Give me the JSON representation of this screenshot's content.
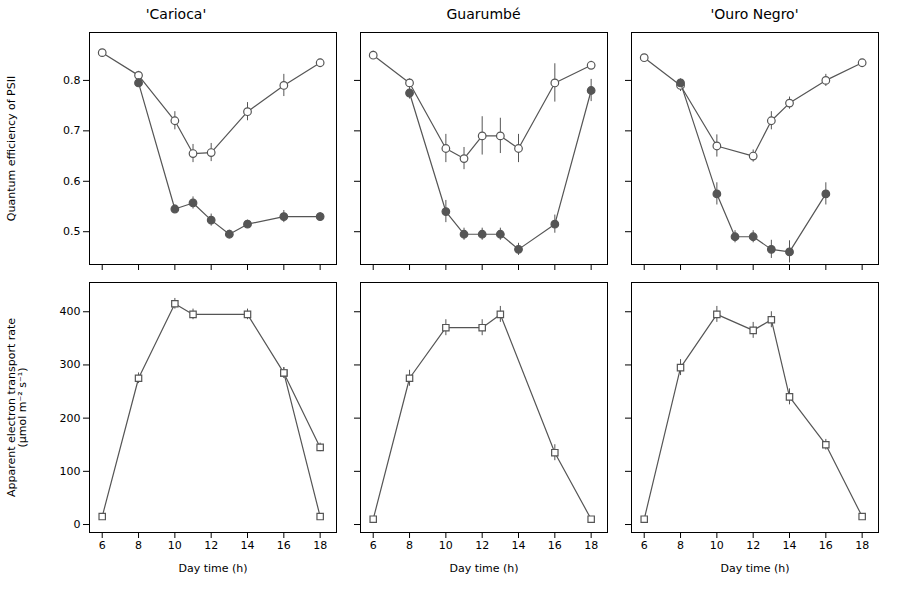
{
  "chart_data": [
    {
      "type": "line",
      "title": "'Carioca'",
      "ylabel": "Quantum efficiency of PSII",
      "xlim": [
        5.3,
        18.9
      ],
      "xticks": [
        6,
        8,
        10,
        12,
        14,
        16,
        18
      ],
      "ylim": [
        0.435,
        0.895
      ],
      "yticks": [
        0.5,
        0.6,
        0.7,
        0.8
      ],
      "tick_labels": "y",
      "series": [
        {
          "x": [
            6,
            8,
            10,
            11,
            12,
            14,
            16,
            18
          ],
          "values": [
            0.855,
            0.81,
            0.72,
            0.655,
            0.657,
            0.738,
            0.79,
            0.835
          ],
          "errors": [
            0.006,
            0.008,
            0.018,
            0.018,
            0.018,
            0.018,
            0.022,
            0.007
          ],
          "color": "#555555",
          "marker": "open_circle",
          "line_style": "solid"
        },
        {
          "x": [
            8,
            10,
            11,
            12,
            13,
            14,
            16,
            18
          ],
          "values": [
            0.795,
            0.545,
            0.557,
            0.523,
            0.495,
            0.515,
            0.53,
            0.53
          ],
          "errors": [
            0.008,
            0.008,
            0.012,
            0.012,
            0.008,
            0.008,
            0.012,
            0.008
          ],
          "color": "#555555",
          "marker": "circle",
          "line_style": "solid"
        }
      ]
    },
    {
      "type": "line",
      "title": "Guarumbé",
      "xlim": [
        5.3,
        18.9
      ],
      "xticks": [
        6,
        8,
        10,
        12,
        14,
        16,
        18
      ],
      "ylim": [
        0.435,
        0.895
      ],
      "yticks": [
        0.5,
        0.6,
        0.7,
        0.8
      ],
      "tick_labels": false,
      "series": [
        {
          "x": [
            6,
            8,
            10,
            11,
            12,
            13,
            14,
            16,
            18
          ],
          "values": [
            0.85,
            0.795,
            0.665,
            0.645,
            0.69,
            0.69,
            0.665,
            0.795,
            0.83
          ],
          "errors": [
            0.008,
            0.008,
            0.028,
            0.022,
            0.038,
            0.035,
            0.028,
            0.038,
            0.008
          ],
          "color": "#555555",
          "marker": "open_circle",
          "line_style": "solid"
        },
        {
          "x": [
            8,
            10,
            11,
            12,
            13,
            14,
            16,
            18
          ],
          "values": [
            0.775,
            0.54,
            0.495,
            0.495,
            0.495,
            0.465,
            0.515,
            0.78
          ],
          "errors": [
            0.012,
            0.022,
            0.012,
            0.012,
            0.012,
            0.012,
            0.018,
            0.022
          ],
          "color": "#555555",
          "marker": "circle",
          "line_style": "solid"
        }
      ]
    },
    {
      "type": "line",
      "title": "'Ouro Negro'",
      "xlim": [
        5.3,
        18.9
      ],
      "xticks": [
        6,
        8,
        10,
        12,
        14,
        16,
        18
      ],
      "ylim": [
        0.435,
        0.895
      ],
      "yticks": [
        0.5,
        0.6,
        0.7,
        0.8
      ],
      "tick_labels": false,
      "series": [
        {
          "x": [
            6,
            8,
            10,
            12,
            13,
            14,
            16,
            18
          ],
          "values": [
            0.845,
            0.79,
            0.67,
            0.65,
            0.72,
            0.755,
            0.8,
            0.835
          ],
          "errors": [
            0.006,
            0.012,
            0.022,
            0.012,
            0.018,
            0.012,
            0.012,
            0.006
          ],
          "color": "#555555",
          "marker": "open_circle",
          "line_style": "solid"
        },
        {
          "x": [
            8,
            10,
            11,
            12,
            13,
            14,
            16
          ],
          "values": [
            0.795,
            0.575,
            0.49,
            0.49,
            0.465,
            0.46,
            0.575
          ],
          "errors": [
            0.008,
            0.022,
            0.012,
            0.012,
            0.018,
            0.022,
            0.022
          ],
          "color": "#555555",
          "marker": "circle",
          "line_style": "solid"
        }
      ]
    },
    {
      "type": "line",
      "xlabel": "Day time (h)",
      "ylabel": "Apparent electron transport rate\n(μmol m⁻² s⁻¹)",
      "xlim": [
        5.3,
        18.9
      ],
      "xticks": [
        6,
        8,
        10,
        12,
        14,
        16,
        18
      ],
      "ylim": [
        -15,
        455
      ],
      "yticks": [
        0,
        100,
        200,
        300,
        400
      ],
      "series": [
        {
          "x": [
            6,
            8,
            10,
            11,
            14,
            16,
            18
          ],
          "values": [
            15,
            275,
            415,
            395,
            395,
            285,
            145
          ],
          "errors": [
            3,
            10,
            10,
            10,
            10,
            10,
            8
          ],
          "color": "#555555",
          "marker": "open_square",
          "line_style": "solid"
        },
        {
          "x": [
            16,
            18
          ],
          "values": [
            285,
            15
          ],
          "errors": [
            10,
            3
          ],
          "color": "#555555",
          "marker": "open_square",
          "line_style": "solid"
        }
      ]
    },
    {
      "type": "line",
      "xlabel": "Day time (h)",
      "xlim": [
        5.3,
        18.9
      ],
      "xticks": [
        6,
        8,
        10,
        12,
        14,
        16,
        18
      ],
      "ylim": [
        -15,
        455
      ],
      "yticks": [
        0,
        100,
        200,
        300,
        400
      ],
      "tick_labels": "x",
      "series": [
        {
          "x": [
            6,
            8,
            10,
            12,
            13,
            16,
            18
          ],
          "values": [
            10,
            275,
            370,
            370,
            395,
            135,
            10
          ],
          "errors": [
            2,
            15,
            15,
            15,
            15,
            15,
            2
          ],
          "color": "#555555",
          "marker": "open_square",
          "line_style": "solid"
        }
      ]
    },
    {
      "type": "line",
      "xlabel": "Day time (h)",
      "xlim": [
        5.3,
        18.9
      ],
      "xticks": [
        6,
        8,
        10,
        12,
        14,
        16,
        18
      ],
      "ylim": [
        -15,
        455
      ],
      "yticks": [
        0,
        100,
        200,
        300,
        400
      ],
      "tick_labels": "x",
      "series": [
        {
          "x": [
            6,
            8,
            10,
            12,
            13,
            14,
            16,
            18
          ],
          "values": [
            10,
            295,
            395,
            365,
            385,
            240,
            150,
            15
          ],
          "errors": [
            2,
            15,
            15,
            15,
            15,
            15,
            10,
            2
          ],
          "color": "#555555",
          "marker": "open_square",
          "line_style": "solid"
        }
      ]
    }
  ]
}
